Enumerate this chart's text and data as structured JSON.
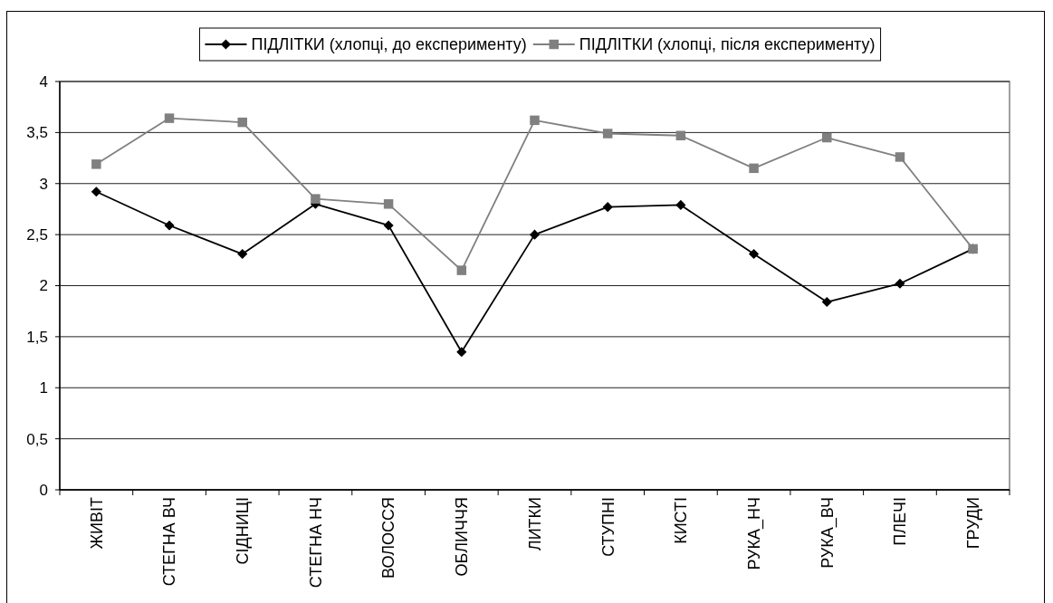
{
  "chart_data": {
    "type": "line",
    "categories": [
      "ЖИВІТ",
      "СТЕГНА ВЧ",
      "СІДНИЦІ",
      "СТЕГНА НЧ",
      "ВОЛОССЯ",
      "ОБЛИЧЧЯ",
      "ЛИТКИ",
      "СТУПНІ",
      "КИСТІ",
      "РУКА_НЧ",
      "РУКА_ВЧ",
      "ПЛЕЧІ",
      "ГРУДИ"
    ],
    "series": [
      {
        "name": "ПІДЛІТКИ (хлопці, до експерименту)",
        "color": "#000000",
        "marker": "diamond",
        "values": [
          2.92,
          2.59,
          2.31,
          2.8,
          2.59,
          1.35,
          2.5,
          2.77,
          2.79,
          2.31,
          1.84,
          2.02,
          2.36
        ]
      },
      {
        "name": "ПІДЛІТКИ (хлопці, після експерименту)",
        "color": "#808080",
        "marker": "square",
        "values": [
          3.19,
          3.64,
          3.6,
          2.85,
          2.8,
          2.15,
          3.62,
          3.49,
          3.47,
          3.15,
          3.45,
          3.26,
          2.36
        ]
      }
    ],
    "ylim": [
      0,
      4
    ],
    "yticks": [
      0,
      {
        "value": 0.5,
        "label": "0,5"
      },
      1,
      {
        "value": 1.5,
        "label": "1,5"
      },
      2,
      {
        "value": 2.5,
        "label": "2,5"
      },
      3,
      {
        "value": 3.5,
        "label": "3,5"
      },
      4
    ],
    "grid": "y",
    "legend": "top"
  }
}
